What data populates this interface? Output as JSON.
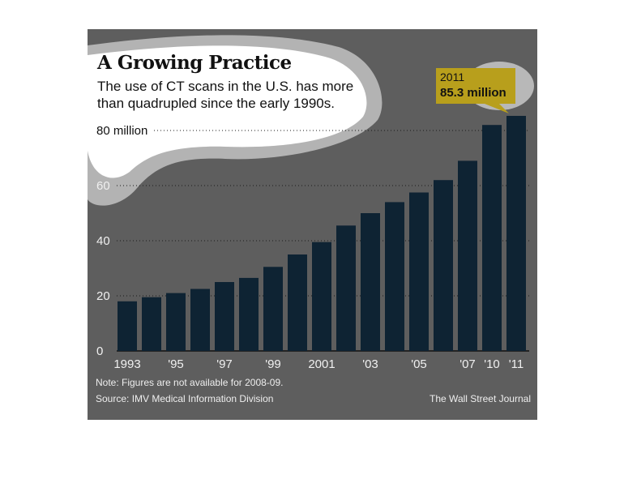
{
  "chart_data": {
    "type": "bar",
    "title": "A Growing Practice",
    "subtitle": "The use of CT scans in the U.S. has more than quadrupled since the early 1990s.",
    "categories": [
      "1993",
      "1994",
      "1995",
      "1996",
      "1997",
      "1998",
      "1999",
      "2000",
      "2001",
      "2002",
      "2003",
      "2004",
      "2005",
      "2006",
      "2007",
      "2010",
      "2011"
    ],
    "values": [
      18,
      19.5,
      21,
      22.5,
      25,
      26.5,
      30.5,
      35,
      39.5,
      45.5,
      50,
      54,
      57.5,
      62,
      69,
      82,
      85.3
    ],
    "x_tick_labels": [
      "1993",
      "",
      "'95",
      "",
      "'97",
      "",
      "'99",
      "",
      "2001",
      "",
      "'03",
      "",
      "'05",
      "",
      "'07",
      "'10",
      "'11"
    ],
    "y_ticks": [
      0,
      20,
      40,
      60,
      80
    ],
    "y_tick_labels": [
      "0",
      "20",
      "40",
      "60",
      "80 million"
    ],
    "ylim": [
      0,
      100
    ],
    "xlabel": "",
    "ylabel": "",
    "grid": "dotted horizontal",
    "bar_color": "#0e2333",
    "annotation": {
      "year": "2011",
      "value_label": "85.3 million",
      "color": "#b89f1c"
    },
    "note": "Note: Figures are not available for 2008-09.",
    "source": "Source: IMV Medical Information Division",
    "credit": "The Wall Street Journal"
  },
  "colors": {
    "panel_background": "#5e5e5e",
    "bubble_fill": "#ffffff",
    "bubble_outline": "#b3b3b3",
    "text_light": "#eeeeee"
  }
}
